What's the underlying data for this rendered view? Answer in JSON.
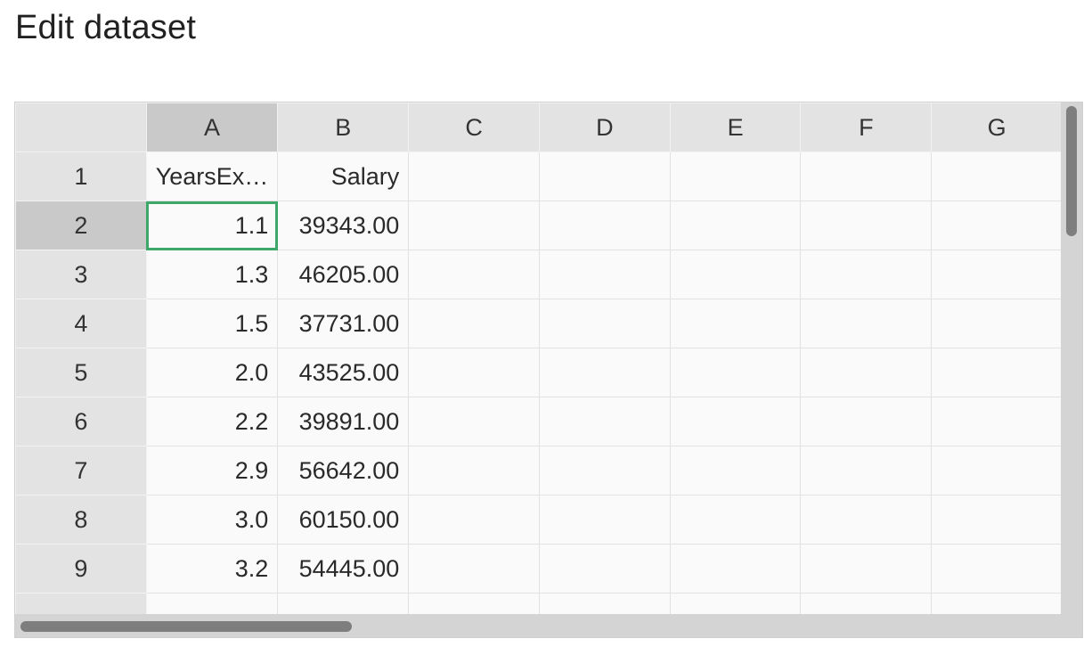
{
  "page": {
    "title": "Edit dataset"
  },
  "grid": {
    "columns": [
      "A",
      "B",
      "C",
      "D",
      "E",
      "F",
      "G"
    ],
    "selected_column": "A",
    "selected_row": "2",
    "rows": [
      {
        "n": "1",
        "a": "YearsEx…",
        "b": "Salary"
      },
      {
        "n": "2",
        "a": "1.1",
        "b": "39343.00"
      },
      {
        "n": "3",
        "a": "1.3",
        "b": "46205.00"
      },
      {
        "n": "4",
        "a": "1.5",
        "b": "37731.00"
      },
      {
        "n": "5",
        "a": "2.0",
        "b": "43525.00"
      },
      {
        "n": "6",
        "a": "2.2",
        "b": "39891.00"
      },
      {
        "n": "7",
        "a": "2.9",
        "b": "56642.00"
      },
      {
        "n": "8",
        "a": "3.0",
        "b": "60150.00"
      },
      {
        "n": "9",
        "a": "3.2",
        "b": "54445.00"
      },
      {
        "n": "",
        "a": "",
        "b": ""
      }
    ]
  },
  "colors": {
    "active_cell_border": "#3da86a",
    "header_bg": "#e3e3e3",
    "selected_header_bg": "#c9c9c9"
  }
}
